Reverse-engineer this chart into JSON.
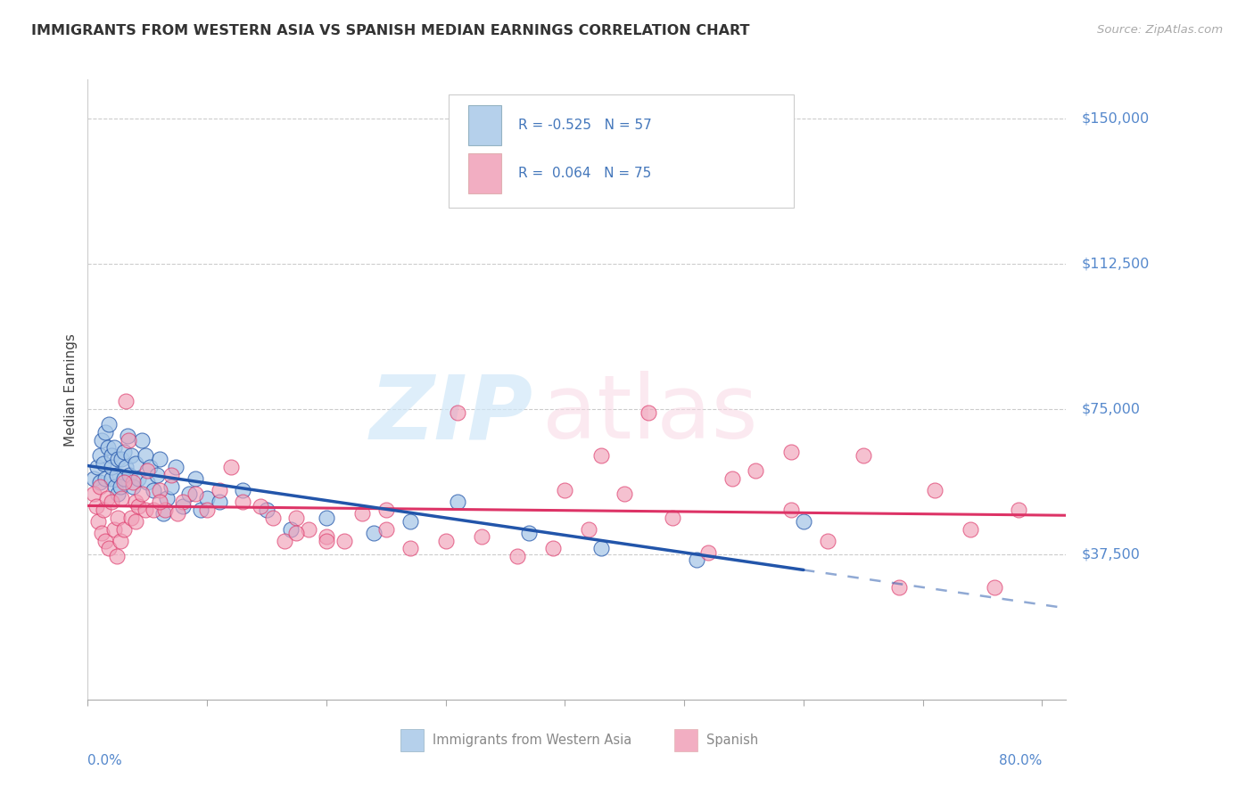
{
  "title": "IMMIGRANTS FROM WESTERN ASIA VS SPANISH MEDIAN EARNINGS CORRELATION CHART",
  "source": "Source: ZipAtlas.com",
  "ylabel": "Median Earnings",
  "ytick_vals": [
    37500,
    75000,
    112500,
    150000
  ],
  "ytick_labels": [
    "$37,500",
    "$75,000",
    "$112,500",
    "$150,000"
  ],
  "xlim": [
    0.0,
    0.82
  ],
  "ylim": [
    0,
    160000
  ],
  "blue_color": "#A8C8E8",
  "pink_color": "#F0A0B8",
  "blue_line_color": "#2255AA",
  "pink_line_color": "#DD3366",
  "axis_color": "#5588CC",
  "grid_color": "#CCCCCC",
  "legend_text_color": "#4477BB",
  "bottom_legend_color": "#888888",
  "blue_scatter_x": [
    0.005,
    0.008,
    0.01,
    0.01,
    0.012,
    0.013,
    0.015,
    0.015,
    0.017,
    0.018,
    0.02,
    0.02,
    0.02,
    0.022,
    0.023,
    0.024,
    0.025,
    0.025,
    0.027,
    0.028,
    0.03,
    0.03,
    0.032,
    0.033,
    0.035,
    0.036,
    0.038,
    0.04,
    0.042,
    0.045,
    0.048,
    0.05,
    0.052,
    0.055,
    0.058,
    0.06,
    0.063,
    0.066,
    0.07,
    0.074,
    0.08,
    0.085,
    0.09,
    0.095,
    0.1,
    0.11,
    0.13,
    0.15,
    0.17,
    0.2,
    0.24,
    0.27,
    0.31,
    0.37,
    0.43,
    0.51,
    0.6
  ],
  "blue_scatter_y": [
    57000,
    60000,
    63000,
    56000,
    67000,
    61000,
    69000,
    57000,
    65000,
    71000,
    63000,
    57000,
    60000,
    65000,
    55000,
    58000,
    62000,
    53000,
    55000,
    62000,
    64000,
    57000,
    60000,
    68000,
    58000,
    63000,
    55000,
    61000,
    57000,
    67000,
    63000,
    56000,
    60000,
    54000,
    58000,
    62000,
    48000,
    52000,
    55000,
    60000,
    50000,
    53000,
    57000,
    49000,
    52000,
    51000,
    54000,
    49000,
    44000,
    47000,
    43000,
    46000,
    51000,
    43000,
    39000,
    36000,
    46000
  ],
  "pink_scatter_x": [
    0.005,
    0.007,
    0.009,
    0.01,
    0.012,
    0.013,
    0.015,
    0.016,
    0.018,
    0.02,
    0.022,
    0.024,
    0.025,
    0.027,
    0.028,
    0.03,
    0.032,
    0.034,
    0.036,
    0.038,
    0.04,
    0.042,
    0.045,
    0.048,
    0.05,
    0.055,
    0.06,
    0.065,
    0.07,
    0.08,
    0.09,
    0.1,
    0.11,
    0.12,
    0.13,
    0.145,
    0.155,
    0.165,
    0.175,
    0.185,
    0.2,
    0.215,
    0.23,
    0.25,
    0.27,
    0.3,
    0.33,
    0.36,
    0.39,
    0.42,
    0.45,
    0.49,
    0.52,
    0.56,
    0.59,
    0.62,
    0.65,
    0.68,
    0.71,
    0.74,
    0.76,
    0.78,
    0.59,
    0.54,
    0.31,
    0.43,
    0.2,
    0.47,
    0.175,
    0.06,
    0.04,
    0.03,
    0.075,
    0.25,
    0.4
  ],
  "pink_scatter_y": [
    53000,
    50000,
    46000,
    55000,
    43000,
    49000,
    41000,
    52000,
    39000,
    51000,
    44000,
    37000,
    47000,
    41000,
    52000,
    44000,
    77000,
    67000,
    47000,
    56000,
    51000,
    50000,
    53000,
    49000,
    59000,
    49000,
    54000,
    49000,
    58000,
    51000,
    53000,
    49000,
    54000,
    60000,
    51000,
    50000,
    47000,
    41000,
    47000,
    44000,
    42000,
    41000,
    48000,
    44000,
    39000,
    41000,
    42000,
    37000,
    39000,
    44000,
    53000,
    47000,
    38000,
    59000,
    49000,
    41000,
    63000,
    29000,
    54000,
    44000,
    29000,
    49000,
    64000,
    57000,
    74000,
    63000,
    41000,
    74000,
    43000,
    51000,
    46000,
    56000,
    48000,
    49000,
    54000
  ]
}
